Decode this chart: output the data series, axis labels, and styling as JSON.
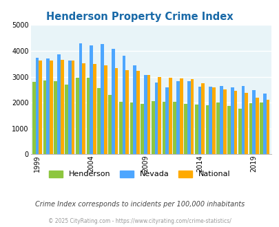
{
  "title": "Henderson Property Crime Index",
  "years": [
    1999,
    2000,
    2001,
    2002,
    2003,
    2004,
    2005,
    2006,
    2007,
    2008,
    2009,
    2010,
    2011,
    2012,
    2013,
    2014,
    2015,
    2016,
    2017,
    2018,
    2019,
    2020
  ],
  "henderson": [
    2800,
    2850,
    2820,
    2700,
    2950,
    2950,
    2550,
    2300,
    2020,
    2000,
    1950,
    2060,
    2020,
    2020,
    1950,
    1920,
    1900,
    2000,
    1870,
    1770,
    1980,
    2000
  ],
  "nevada": [
    3730,
    3700,
    3860,
    3620,
    4280,
    4200,
    4260,
    4090,
    3800,
    3450,
    3080,
    2780,
    2580,
    2840,
    2840,
    2620,
    2620,
    2630,
    2580,
    2640,
    2470,
    2340
  ],
  "national": [
    3620,
    3620,
    3650,
    3630,
    3520,
    3490,
    3450,
    3340,
    3260,
    3220,
    3060,
    2980,
    2960,
    2940,
    2910,
    2760,
    2600,
    2500,
    2460,
    2370,
    2200,
    2110
  ],
  "bar_colors": {
    "henderson": "#8dc63f",
    "nevada": "#4da6ff",
    "national": "#ffaa00"
  },
  "ylim": [
    0,
    5000
  ],
  "yticks": [
    0,
    1000,
    2000,
    3000,
    4000,
    5000
  ],
  "xtick_years": [
    1999,
    2004,
    2009,
    2014,
    2019
  ],
  "bg_color": "#e8f4f8",
  "fig_bg": "#ffffff",
  "grid_color": "#ffffff",
  "subtitle": "Crime Index corresponds to incidents per 100,000 inhabitants",
  "footer": "© 2025 CityRating.com - https://www.cityrating.com/crime-statistics/",
  "title_color": "#1a6aa8",
  "subtitle_color": "#444444",
  "footer_color": "#999999"
}
